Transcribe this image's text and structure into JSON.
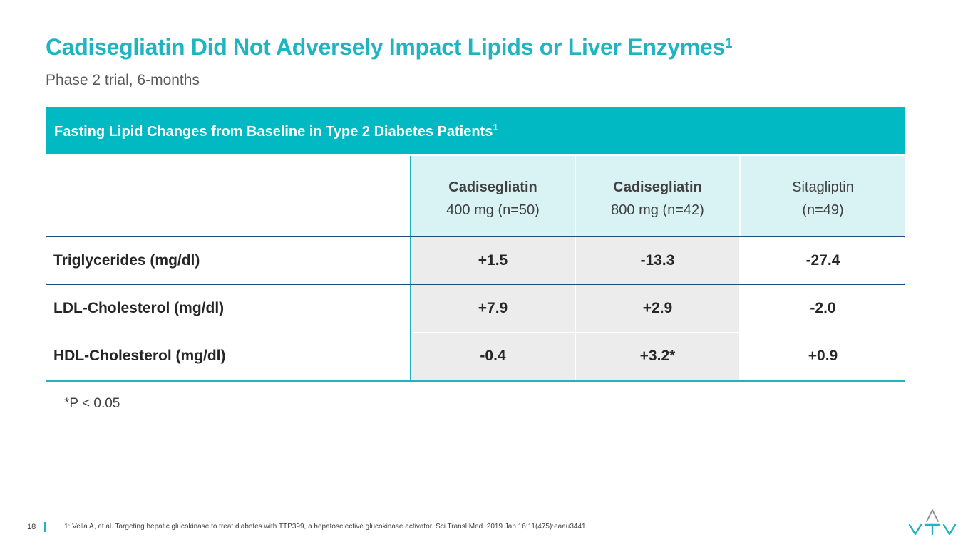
{
  "title": {
    "text": "Cadisegliatin Did Not Adversely Impact Lipids or Liver Enzymes",
    "superscript": "1"
  },
  "subtitle": "Phase 2 trial, 6-months",
  "table": {
    "header": "Fasting Lipid Changes from Baseline in Type 2 Diabetes Patients",
    "header_superscript": "1",
    "columns": [
      {
        "name": "Cadisegliatin",
        "detail": "400 mg (n=50)"
      },
      {
        "name": "Cadisegliatin",
        "detail": "800 mg  (n=42)"
      },
      {
        "name": "Sitagliptin",
        "detail": "(n=49)"
      }
    ],
    "rows": [
      {
        "label": "Triglycerides (mg/dl)",
        "values": [
          "+1.5",
          "-13.3",
          "-27.4"
        ]
      },
      {
        "label": "LDL-Cholesterol (mg/dl)",
        "values": [
          "+7.9",
          "+2.9",
          "-2.0"
        ]
      },
      {
        "label": "HDL-Cholesterol (mg/dl)",
        "values": [
          "-0.4",
          "+3.2*",
          "+0.9"
        ]
      }
    ]
  },
  "footnote": "*P < 0.05",
  "footer": {
    "page_number": "18",
    "reference": "1: Vella A, et al. Targeting hepatic glucokinase to treat diabetes with TTP399, a hepatoselective glucokinase activator. Sci Transl Med. 2019 Jan 16;11(475):eaau3441"
  },
  "logo": {
    "icon": "vtv-logo-icon"
  },
  "colors": {
    "accent": "#00b9c3",
    "header_tint": "#d9f3f5",
    "cell_gray": "#ececec",
    "row_outline": "#1f4e79"
  }
}
